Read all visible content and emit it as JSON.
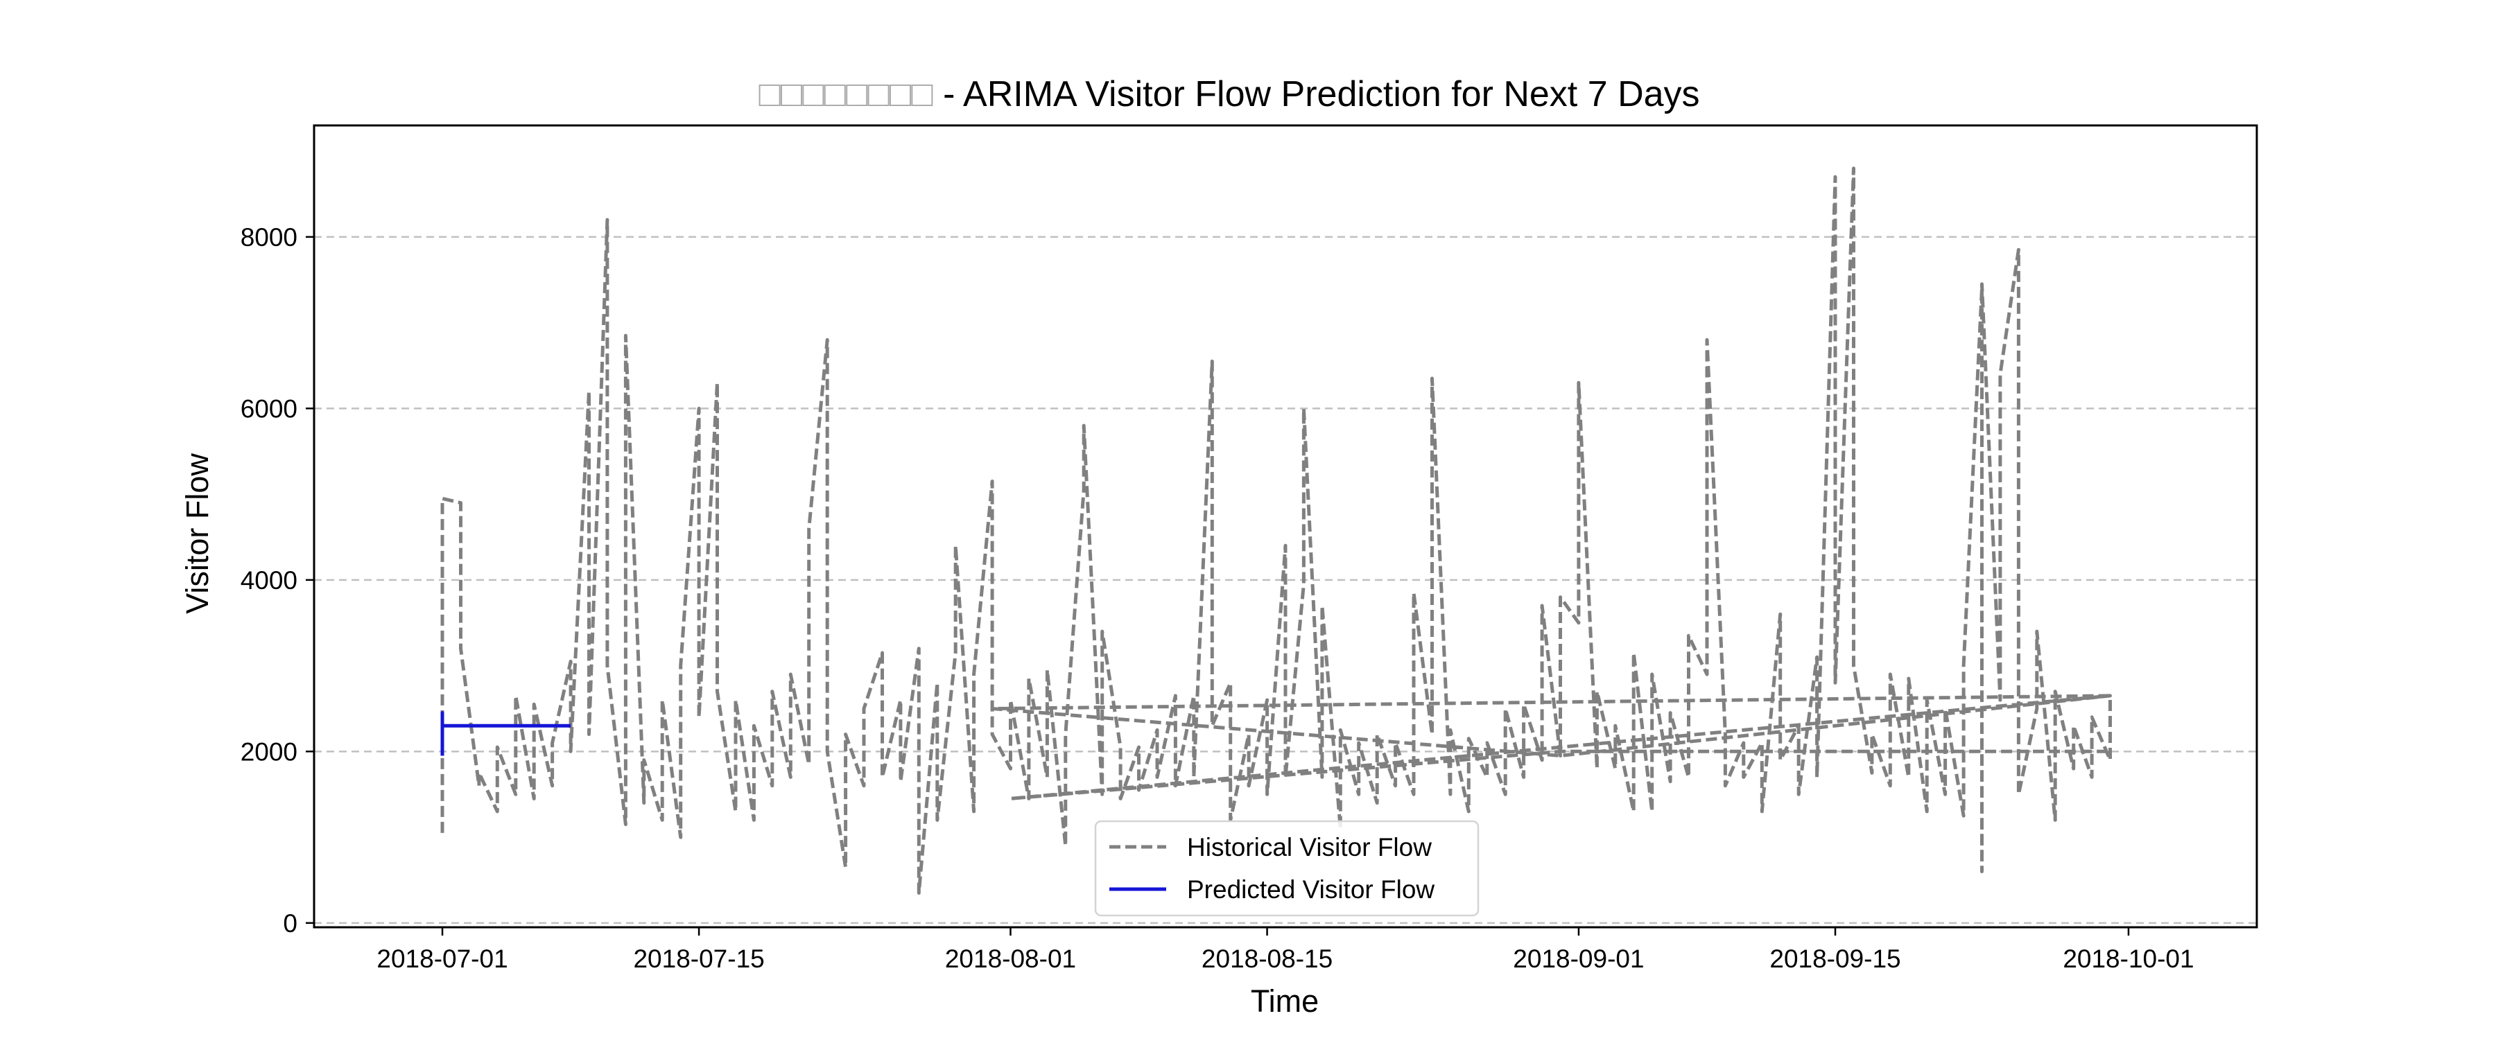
{
  "chart_data": {
    "type": "line",
    "title": {
      "prefix": "□□□□□□□□",
      "main": " - ARIMA Visitor Flow Prediction for Next 7 Days"
    },
    "xlabel": "Time",
    "ylabel": "Visitor Flow",
    "x_axis": {
      "type": "date",
      "range": [
        "2018-06-24",
        "2018-10-08"
      ],
      "ticks": [
        {
          "date": "2018-07-01",
          "label": "2018-07-01"
        },
        {
          "date": "2018-07-15",
          "label": "2018-07-15"
        },
        {
          "date": "2018-08-01",
          "label": "2018-08-01"
        },
        {
          "date": "2018-08-15",
          "label": "2018-08-15"
        },
        {
          "date": "2018-09-01",
          "label": "2018-09-01"
        },
        {
          "date": "2018-09-15",
          "label": "2018-09-15"
        },
        {
          "date": "2018-10-01",
          "label": "2018-10-01"
        }
      ]
    },
    "y_axis": {
      "range": [
        -50,
        9300
      ],
      "ticks": [
        0,
        2000,
        4000,
        6000,
        8000
      ]
    },
    "grid": {
      "axis": "y",
      "style": "dashed",
      "color": "#c0c0c0"
    },
    "legend": {
      "placement": "bottom-center"
    },
    "series": [
      {
        "name": "Historical Visitor Flow",
        "color": "#808080",
        "style": "dashed",
        "points": [
          [
            "2018-07-01",
            1050
          ],
          [
            "2018-07-01",
            4950
          ],
          [
            "2018-07-02",
            4900
          ],
          [
            "2018-07-02",
            3200
          ],
          [
            "2018-07-03",
            1600
          ],
          [
            "2018-07-03",
            1750
          ],
          [
            "2018-07-04",
            1300
          ],
          [
            "2018-07-04",
            2050
          ],
          [
            "2018-07-05",
            1500
          ],
          [
            "2018-07-05",
            2650
          ],
          [
            "2018-07-06",
            1450
          ],
          [
            "2018-07-06",
            2550
          ],
          [
            "2018-07-07",
            1600
          ],
          [
            "2018-07-07",
            2100
          ],
          [
            "2018-07-08",
            3050
          ],
          [
            "2018-07-08",
            2000
          ],
          [
            "2018-07-09",
            6200
          ],
          [
            "2018-07-09",
            2200
          ],
          [
            "2018-07-10",
            8200
          ],
          [
            "2018-07-10",
            3000
          ],
          [
            "2018-07-11",
            1150
          ],
          [
            "2018-07-11",
            6850
          ],
          [
            "2018-07-12",
            1400
          ],
          [
            "2018-07-12",
            1900
          ],
          [
            "2018-07-13",
            1200
          ],
          [
            "2018-07-13",
            2600
          ],
          [
            "2018-07-14",
            1000
          ],
          [
            "2018-07-14",
            3000
          ],
          [
            "2018-07-15",
            6000
          ],
          [
            "2018-07-15",
            2400
          ],
          [
            "2018-07-16",
            6300
          ],
          [
            "2018-07-16",
            2700
          ],
          [
            "2018-07-17",
            1300
          ],
          [
            "2018-07-17",
            2600
          ],
          [
            "2018-07-18",
            1200
          ],
          [
            "2018-07-18",
            2300
          ],
          [
            "2018-07-19",
            1600
          ],
          [
            "2018-07-19",
            2700
          ],
          [
            "2018-07-20",
            1700
          ],
          [
            "2018-07-20",
            2900
          ],
          [
            "2018-07-21",
            1850
          ],
          [
            "2018-07-21",
            4600
          ],
          [
            "2018-07-22",
            6800
          ],
          [
            "2018-07-22",
            2000
          ],
          [
            "2018-07-23",
            650
          ],
          [
            "2018-07-23",
            2200
          ],
          [
            "2018-07-24",
            1600
          ],
          [
            "2018-07-24",
            2500
          ],
          [
            "2018-07-25",
            3150
          ],
          [
            "2018-07-25",
            1700
          ],
          [
            "2018-07-26",
            2600
          ],
          [
            "2018-07-26",
            1650
          ],
          [
            "2018-07-27",
            3200
          ],
          [
            "2018-07-27",
            2900
          ],
          [
            "2018-07-27",
            350
          ],
          [
            "2018-07-28",
            2800
          ],
          [
            "2018-07-28",
            1200
          ],
          [
            "2018-07-29",
            3150
          ],
          [
            "2018-07-29",
            4400
          ],
          [
            "2018-07-30",
            1300
          ],
          [
            "2018-07-30",
            2900
          ],
          [
            "2018-07-31",
            5150
          ],
          [
            "2018-07-31",
            2200
          ],
          [
            "2018-08-01",
            1800
          ],
          [
            "2018-08-01",
            2600
          ],
          [
            "2018-08-02",
            1450
          ],
          [
            "2018-08-02",
            2850
          ],
          [
            "2018-08-03",
            1700
          ],
          [
            "2018-08-03",
            2950
          ],
          [
            "2018-08-04",
            900
          ],
          [
            "2018-08-04",
            2200
          ],
          [
            "2018-08-05",
            5050
          ],
          [
            "2018-08-05",
            5800
          ],
          [
            "2018-08-06",
            1500
          ],
          [
            "2018-08-06",
            3400
          ],
          [
            "2018-08-07",
            2050
          ],
          [
            "2018-08-07",
            1450
          ],
          [
            "2018-08-08",
            2050
          ],
          [
            "2018-08-08",
            1550
          ],
          [
            "2018-08-09",
            2250
          ],
          [
            "2018-08-09",
            1700
          ],
          [
            "2018-08-10",
            2650
          ],
          [
            "2018-08-10",
            1600
          ],
          [
            "2018-08-11",
            2650
          ],
          [
            "2018-08-11",
            1700
          ],
          [
            "2018-08-12",
            6550
          ],
          [
            "2018-08-12",
            2300
          ],
          [
            "2018-08-13",
            2800
          ],
          [
            "2018-08-13",
            1200
          ],
          [
            "2018-08-14",
            2200
          ],
          [
            "2018-08-14",
            1600
          ],
          [
            "2018-08-15",
            2600
          ],
          [
            "2018-08-15",
            1500
          ],
          [
            "2018-08-16",
            4400
          ],
          [
            "2018-08-16",
            1700
          ],
          [
            "2018-08-17",
            3950
          ],
          [
            "2018-08-17",
            6000
          ],
          [
            "2018-08-18",
            1700
          ],
          [
            "2018-08-18",
            3700
          ],
          [
            "2018-08-19",
            1100
          ],
          [
            "2018-08-19",
            2250
          ],
          [
            "2018-08-20",
            1500
          ],
          [
            "2018-08-20",
            2100
          ],
          [
            "2018-08-21",
            1400
          ],
          [
            "2018-08-21",
            2200
          ],
          [
            "2018-08-22",
            1600
          ],
          [
            "2018-08-22",
            2100
          ],
          [
            "2018-08-23",
            1500
          ],
          [
            "2018-08-23",
            3850
          ],
          [
            "2018-08-24",
            2200
          ],
          [
            "2018-08-24",
            6350
          ],
          [
            "2018-08-25",
            1500
          ],
          [
            "2018-08-25",
            2250
          ],
          [
            "2018-08-26",
            1300
          ],
          [
            "2018-08-26",
            2150
          ],
          [
            "2018-08-27",
            1700
          ],
          [
            "2018-08-27",
            2100
          ],
          [
            "2018-08-28",
            1500
          ],
          [
            "2018-08-28",
            2500
          ],
          [
            "2018-08-29",
            1700
          ],
          [
            "2018-08-29",
            2550
          ],
          [
            "2018-08-30",
            1900
          ],
          [
            "2018-08-30",
            3700
          ],
          [
            "2018-08-31",
            1950
          ],
          [
            "2018-08-31",
            3800
          ],
          [
            "2018-09-01",
            3500
          ],
          [
            "2018-09-01",
            6300
          ],
          [
            "2018-09-02",
            1800
          ],
          [
            "2018-09-02",
            2700
          ],
          [
            "2018-09-03",
            1800
          ],
          [
            "2018-09-03",
            2300
          ],
          [
            "2018-09-04",
            1300
          ],
          [
            "2018-09-04",
            3150
          ],
          [
            "2018-09-05",
            1300
          ],
          [
            "2018-09-05",
            2900
          ],
          [
            "2018-09-06",
            1650
          ],
          [
            "2018-09-06",
            2450
          ],
          [
            "2018-09-07",
            1700
          ],
          [
            "2018-09-07",
            3350
          ],
          [
            "2018-09-08",
            2900
          ],
          [
            "2018-09-08",
            6800
          ],
          [
            "2018-09-09",
            2200
          ],
          [
            "2018-09-09",
            1600
          ],
          [
            "2018-09-10",
            2100
          ],
          [
            "2018-09-10",
            1700
          ],
          [
            "2018-09-11",
            2100
          ],
          [
            "2018-09-11",
            1300
          ],
          [
            "2018-09-12",
            3600
          ],
          [
            "2018-09-12",
            1900
          ],
          [
            "2018-09-13",
            2300
          ],
          [
            "2018-09-13",
            1500
          ],
          [
            "2018-09-14",
            3100
          ],
          [
            "2018-09-14",
            1700
          ],
          [
            "2018-09-15",
            8700
          ],
          [
            "2018-09-15",
            2800
          ],
          [
            "2018-09-16",
            8800
          ],
          [
            "2018-09-16",
            3000
          ],
          [
            "2018-09-17",
            1750
          ],
          [
            "2018-09-17",
            2200
          ],
          [
            "2018-09-18",
            1600
          ],
          [
            "2018-09-18",
            2900
          ],
          [
            "2018-09-19",
            1700
          ],
          [
            "2018-09-19",
            2850
          ],
          [
            "2018-09-20",
            1300
          ],
          [
            "2018-09-20",
            2600
          ],
          [
            "2018-09-21",
            1500
          ],
          [
            "2018-09-21",
            2500
          ],
          [
            "2018-09-22",
            1250
          ],
          [
            "2018-09-22",
            3000
          ],
          [
            "2018-09-23",
            7400
          ],
          [
            "2018-09-23",
            600
          ],
          [
            "2018-09-23",
            7450
          ],
          [
            "2018-09-24",
            2600
          ],
          [
            "2018-09-24",
            6400
          ],
          [
            "2018-09-25",
            7850
          ],
          [
            "2018-09-25",
            1500
          ],
          [
            "2018-09-26",
            2500
          ],
          [
            "2018-09-26",
            3400
          ],
          [
            "2018-09-27",
            1200
          ],
          [
            "2018-09-27",
            2700
          ],
          [
            "2018-09-28",
            1800
          ],
          [
            "2018-09-28",
            2300
          ],
          [
            "2018-09-29",
            1700
          ],
          [
            "2018-09-29",
            2400
          ],
          [
            "2018-09-30",
            1900
          ],
          [
            "2018-09-30",
            2650
          ],
          [
            "2018-07-31",
            2500
          ],
          [
            "2018-08-31",
            1950
          ],
          [
            "2018-09-30",
            2650
          ],
          [
            "2018-08-01",
            1450
          ],
          [
            "2018-08-31",
            2000
          ],
          [
            "2018-09-30",
            2000
          ]
        ]
      },
      {
        "name": "Predicted Visitor Flow",
        "color": "#1515d6",
        "style": "solid",
        "points": [
          [
            "2018-07-01",
            1950
          ],
          [
            "2018-07-01",
            2450
          ],
          [
            "2018-07-01",
            2300
          ],
          [
            "2018-07-02",
            2300
          ],
          [
            "2018-07-03",
            2300
          ],
          [
            "2018-07-04",
            2300
          ],
          [
            "2018-07-05",
            2300
          ],
          [
            "2018-07-06",
            2300
          ],
          [
            "2018-07-07",
            2300
          ],
          [
            "2018-07-08",
            2300
          ]
        ]
      }
    ]
  }
}
